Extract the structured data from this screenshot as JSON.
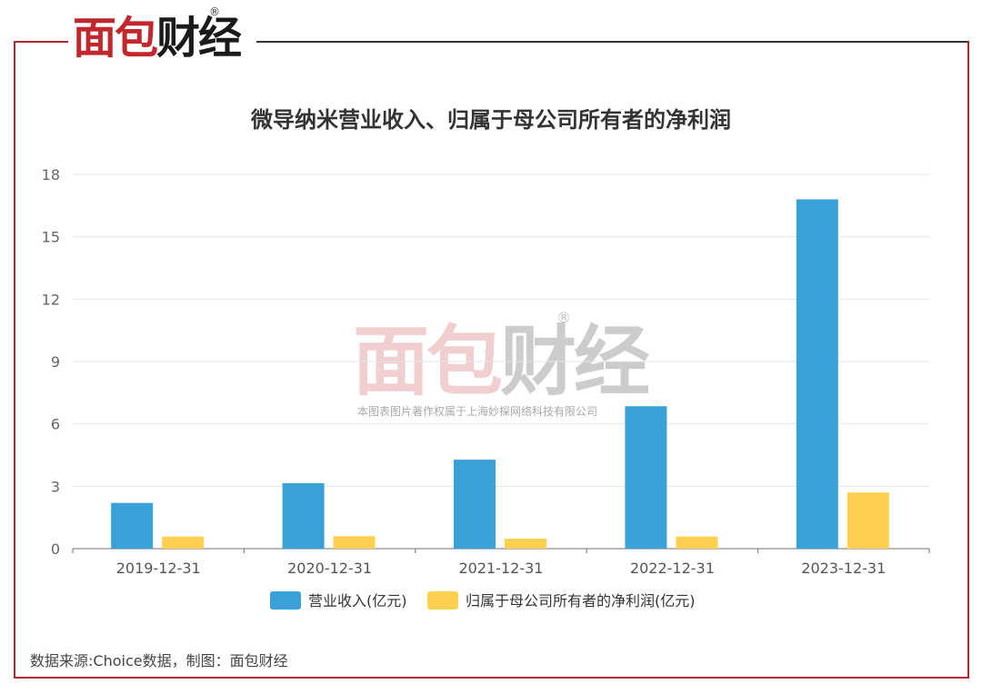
{
  "header": {
    "logo_text_part1": "面包",
    "logo_text_part2": "财经",
    "registered_mark": "®"
  },
  "watermark": {
    "logo_text_part1": "面包",
    "logo_text_part2": "财经",
    "registered_mark": "®",
    "copyright": "本图表图片著作权属于上海妙探网络科技有限公司"
  },
  "source_note": "数据来源:Choice数据，制图：面包财经",
  "colors": {
    "revenue": "#3aa0d8",
    "net_profit": "#ffd04f",
    "frame": "#b22830"
  },
  "chart_data": {
    "type": "bar",
    "title": "微导纳米营业收入、归属于母公司所有者的净利润",
    "categories": [
      "2019-12-31",
      "2020-12-31",
      "2021-12-31",
      "2022-12-31",
      "2023-12-31"
    ],
    "series": [
      {
        "name": "营业收入(亿元)",
        "values": [
          2.2,
          3.15,
          4.28,
          6.85,
          16.8
        ]
      },
      {
        "name": "归属于母公司所有者的净利润(亿元)",
        "values": [
          0.58,
          0.6,
          0.48,
          0.58,
          2.7
        ]
      }
    ],
    "ylim": [
      0,
      18
    ],
    "yticks": [
      0,
      3,
      6,
      9,
      12,
      15,
      18
    ],
    "grid": true,
    "legend_position": "bottom"
  }
}
